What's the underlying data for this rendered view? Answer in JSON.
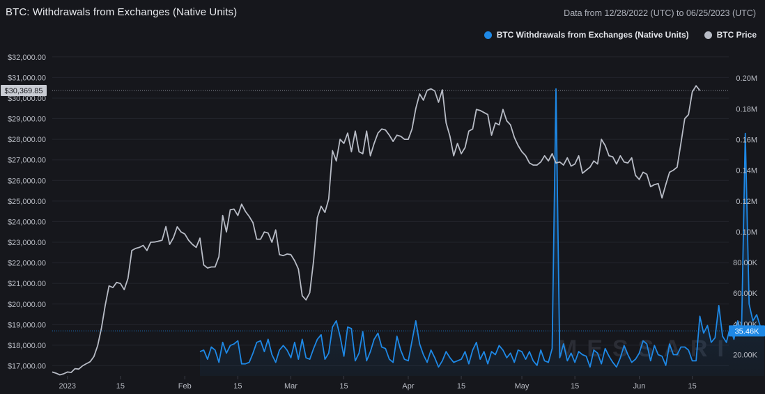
{
  "header": {
    "title": "BTC: Withdrawals from Exchanges (Native Units)",
    "date_range": "Data from 12/28/2022 (UTC) to 06/25/2023 (UTC)"
  },
  "legend": [
    {
      "label": "BTC Withdrawals from Exchanges (Native Units)",
      "color": "#1e88e5"
    },
    {
      "label": "BTC Price",
      "color": "#b8bcc6"
    }
  ],
  "watermark": "MESSARI",
  "chart_data": {
    "type": "line",
    "x_ticks": [
      "2023",
      "15",
      "Feb",
      "15",
      "Mar",
      "15",
      "Apr",
      "15",
      "May",
      "15",
      "Jun",
      "15"
    ],
    "y_left": {
      "ticks": [
        "$17,000.00",
        "$18,000.00",
        "$19,000.00",
        "$20,000.00",
        "$21,000.00",
        "$22,000.00",
        "$23,000.00",
        "$24,000.00",
        "$25,000.00",
        "$26,000.00",
        "$27,000.00",
        "$28,000.00",
        "$29,000.00",
        "$30,000.00",
        "$31,000.00",
        "$32,000.00"
      ],
      "range": [
        16500,
        32000
      ],
      "current_label": "$30,369.85",
      "current_value": 30369.85
    },
    "y_right": {
      "ticks": [
        "20.00K",
        "40.00K",
        "60.00K",
        "80.00K",
        "100K",
        "120K",
        "140K",
        "160K",
        "180K",
        "200K"
      ],
      "tick_labels": [
        "20.00K",
        "40.00K",
        "60.00K",
        "80.00K",
        "0.10M",
        "0.12M",
        "0.14M",
        "0.16M",
        "0.18M",
        "0.20M"
      ],
      "range": [
        10000,
        205000
      ],
      "current_label": "35.46K",
      "current_value": 35460
    },
    "series": [
      {
        "name": "BTC Price",
        "color": "#b8bcc6",
        "axis": "left",
        "x_start": "2022-12-28",
        "values": [
          16700,
          16640,
          16560,
          16610,
          16700,
          16680,
          16860,
          16840,
          17000,
          17100,
          17200,
          17450,
          17980,
          18850,
          19950,
          20880,
          20800,
          21050,
          21000,
          20700,
          21250,
          22600,
          22700,
          22750,
          22850,
          22600,
          23000,
          23010,
          23050,
          23100,
          23760,
          22900,
          23220,
          23750,
          23500,
          23400,
          23100,
          22900,
          22750,
          23200,
          21900,
          21750,
          21800,
          21800,
          22300,
          24300,
          23500,
          24580,
          24610,
          24300,
          24850,
          24500,
          24250,
          23950,
          23150,
          23150,
          23500,
          23450,
          23000,
          23600,
          22400,
          22350,
          22430,
          22400,
          22100,
          21700,
          20400,
          20200,
          20550,
          22100,
          24200,
          24750,
          24450,
          25100,
          27450,
          26950,
          28000,
          27800,
          28300,
          27400,
          28400,
          27400,
          27300,
          28400,
          27200,
          27800,
          28300,
          28500,
          28450,
          28200,
          27900,
          28200,
          28150,
          28000,
          28000,
          28500,
          29500,
          30200,
          29900,
          30380,
          30450,
          30350,
          29800,
          30400,
          28800,
          28150,
          27200,
          27800,
          27300,
          27600,
          28400,
          28500,
          29450,
          29400,
          29300,
          29200,
          28200,
          28800,
          28700,
          29450,
          28900,
          28700,
          28100,
          27700,
          27400,
          27200,
          26850,
          26750,
          26750,
          26900,
          27200,
          26950,
          27300,
          26850,
          26900,
          26750,
          27100,
          26700,
          26800,
          27200,
          26350,
          26500,
          26650,
          26950,
          26800,
          28000,
          27700,
          27200,
          27150,
          26800,
          27200,
          26900,
          26850,
          27100,
          26250,
          26050,
          26400,
          26300,
          25700,
          25800,
          25850,
          25150,
          25800,
          26400,
          26500,
          26650,
          27800,
          29000,
          29200,
          30300,
          30600,
          30370
        ]
      },
      {
        "name": "BTC Withdrawals from Exchanges (Native Units)",
        "color": "#1e88e5",
        "axis": "right",
        "x_start": "2023-02-05",
        "values": [
          22000,
          23000,
          17000,
          25000,
          23000,
          15000,
          28000,
          21000,
          26000,
          27000,
          29000,
          14000,
          14000,
          15000,
          21000,
          28000,
          29000,
          22000,
          30000,
          20000,
          15000,
          23000,
          26000,
          23000,
          18000,
          28000,
          17000,
          30000,
          18000,
          17000,
          24000,
          30000,
          33000,
          17000,
          21000,
          38000,
          42000,
          32000,
          19000,
          38000,
          37000,
          16000,
          21000,
          35000,
          16000,
          22000,
          30000,
          34000,
          25000,
          24000,
          17000,
          15000,
          32000,
          23000,
          17000,
          16000,
          29000,
          42000,
          27000,
          20000,
          15000,
          23000,
          18000,
          12000,
          16000,
          22000,
          18000,
          15000,
          16000,
          17000,
          22000,
          14000,
          23000,
          28000,
          17000,
          22000,
          14000,
          22000,
          20000,
          26000,
          23000,
          18000,
          21000,
          15000,
          23000,
          22000,
          17000,
          22000,
          16000,
          13000,
          23000,
          16000,
          15000,
          24000,
          193000,
          18000,
          27000,
          16000,
          21000,
          15000,
          22000,
          20000,
          19000,
          12000,
          23000,
          21000,
          14000,
          24000,
          19000,
          15000,
          12000,
          18000,
          26000,
          20000,
          15000,
          17000,
          21000,
          29000,
          27000,
          16000,
          26000,
          20000,
          19000,
          13000,
          27000,
          20000,
          20000,
          25000,
          25000,
          23000,
          16000,
          16000,
          45000,
          34000,
          39000,
          28000,
          31000,
          52000,
          32000,
          28000,
          38000,
          30000,
          42000,
          34000,
          164000,
          53000,
          42000,
          46000,
          38000,
          35460
        ]
      }
    ]
  }
}
